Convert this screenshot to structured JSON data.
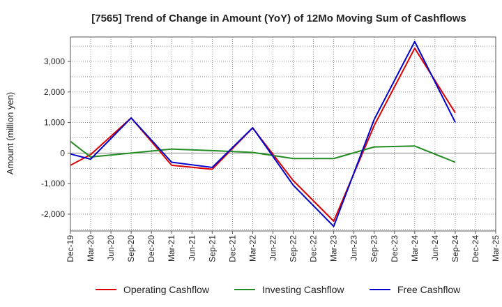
{
  "chart_data": {
    "type": "line",
    "title": "[7565]  Trend of Change in Amount (YoY) of 12Mo Moving Sum of Cashflows",
    "xlabel": "",
    "ylabel": "Amount (million yen)",
    "ylim": [
      -2550,
      3800
    ],
    "yticks": [
      -2000,
      -1000,
      0,
      1000,
      2000,
      3000
    ],
    "ytick_labels": [
      "-2,000",
      "-1,000",
      "0",
      "1,000",
      "2,000",
      "3,000"
    ],
    "categories": [
      "Dec-19",
      "Mar-20",
      "Jun-20",
      "Sep-20",
      "Dec-20",
      "Mar-21",
      "Jun-21",
      "Sep-21",
      "Dec-21",
      "Mar-22",
      "Jun-22",
      "Sep-22",
      "Dec-22",
      "Mar-23",
      "Jun-23",
      "Sep-23",
      "Dec-23",
      "Mar-24",
      "Jun-24",
      "Sep-24",
      "Dec-24",
      "Mar-25"
    ],
    "grid": true,
    "legend_position": "bottom",
    "series": [
      {
        "name": "Operating Cashflow",
        "color": "#dd0000",
        "values": [
          -400,
          -50,
          null,
          1150,
          null,
          -400,
          null,
          -530,
          null,
          820,
          null,
          -900,
          null,
          -2230,
          null,
          900,
          null,
          3430,
          null,
          1320,
          null,
          null
        ]
      },
      {
        "name": "Investing Cashflow",
        "color": "#228b22",
        "values": [
          380,
          -130,
          null,
          0,
          null,
          130,
          null,
          80,
          null,
          20,
          null,
          -180,
          null,
          -180,
          null,
          200,
          null,
          230,
          null,
          -300,
          null,
          null
        ]
      },
      {
        "name": "Free Cashflow",
        "color": "#0000cc",
        "values": [
          -30,
          -200,
          null,
          1150,
          null,
          -300,
          null,
          -470,
          null,
          830,
          null,
          -1050,
          null,
          -2400,
          null,
          1100,
          null,
          3650,
          null,
          1010,
          null,
          null
        ]
      }
    ]
  }
}
